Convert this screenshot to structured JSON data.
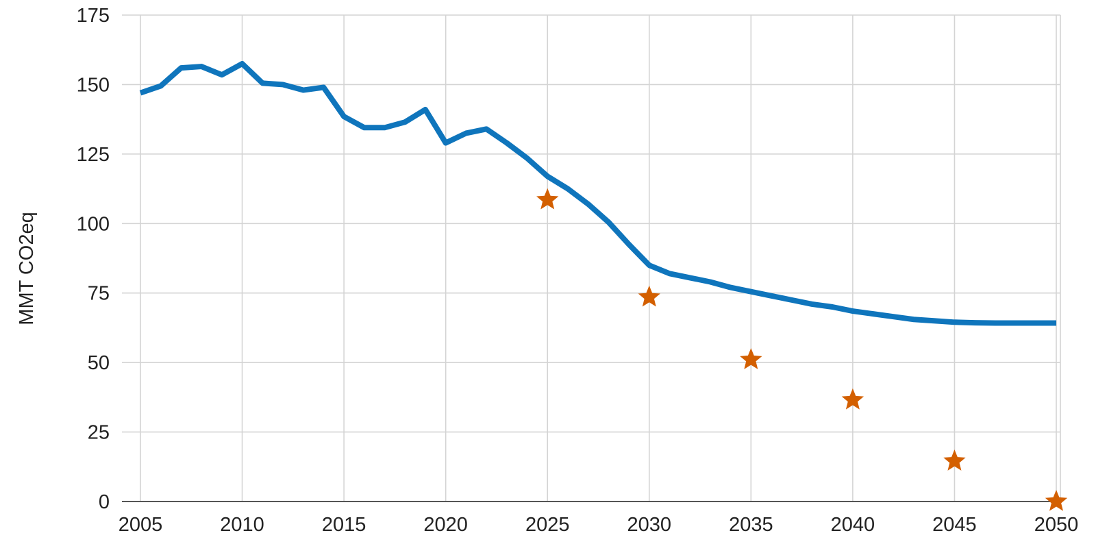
{
  "chart_data": {
    "type": "line",
    "title": "",
    "xlabel": "",
    "ylabel": "MMT CO2eq",
    "xlim": [
      2005,
      2050
    ],
    "ylim": [
      0,
      175
    ],
    "x_ticks": [
      "2005",
      "2010",
      "2015",
      "2020",
      "2025",
      "2030",
      "2035",
      "2040",
      "2045",
      "2050"
    ],
    "y_ticks": [
      "0",
      "25",
      "50",
      "75",
      "100",
      "125",
      "150",
      "175"
    ],
    "grid": true,
    "legend": "none",
    "series": [
      {
        "kind": "line",
        "color": "#0f75bc",
        "points": [
          [
            2005,
            147
          ],
          [
            2006,
            149.5
          ],
          [
            2007,
            156
          ],
          [
            2008,
            156.5
          ],
          [
            2009,
            153.5
          ],
          [
            2010,
            157.5
          ],
          [
            2011,
            150.5
          ],
          [
            2012,
            150
          ],
          [
            2013,
            148
          ],
          [
            2014,
            149
          ],
          [
            2015,
            138.5
          ],
          [
            2016,
            134.5
          ],
          [
            2017,
            134.5
          ],
          [
            2018,
            136.5
          ],
          [
            2019,
            141
          ],
          [
            2020,
            129
          ],
          [
            2021,
            132.5
          ],
          [
            2022,
            134
          ],
          [
            2023,
            129
          ],
          [
            2024,
            123.5
          ],
          [
            2025,
            117
          ],
          [
            2026,
            112.5
          ],
          [
            2027,
            107
          ],
          [
            2028,
            100.5
          ],
          [
            2029,
            92.5
          ],
          [
            2030,
            85
          ],
          [
            2031,
            82
          ],
          [
            2032,
            80.5
          ],
          [
            2033,
            79
          ],
          [
            2034,
            77
          ],
          [
            2035,
            75.5
          ],
          [
            2036,
            74
          ],
          [
            2037,
            72.5
          ],
          [
            2038,
            71
          ],
          [
            2039,
            70
          ],
          [
            2040,
            68.5
          ],
          [
            2041,
            67.5
          ],
          [
            2042,
            66.5
          ],
          [
            2043,
            65.5
          ],
          [
            2044,
            65
          ],
          [
            2045,
            64.5
          ],
          [
            2046,
            64.3
          ],
          [
            2047,
            64.2
          ],
          [
            2048,
            64.2
          ],
          [
            2049,
            64.2
          ],
          [
            2050,
            64.2
          ]
        ]
      },
      {
        "kind": "marker",
        "marker": "star",
        "color": "#d35f00",
        "points": [
          [
            2025,
            108.5
          ],
          [
            2030,
            73.5
          ],
          [
            2035,
            51
          ],
          [
            2040,
            36.5
          ],
          [
            2045,
            14.5
          ],
          [
            2050,
            0
          ]
        ]
      }
    ]
  }
}
